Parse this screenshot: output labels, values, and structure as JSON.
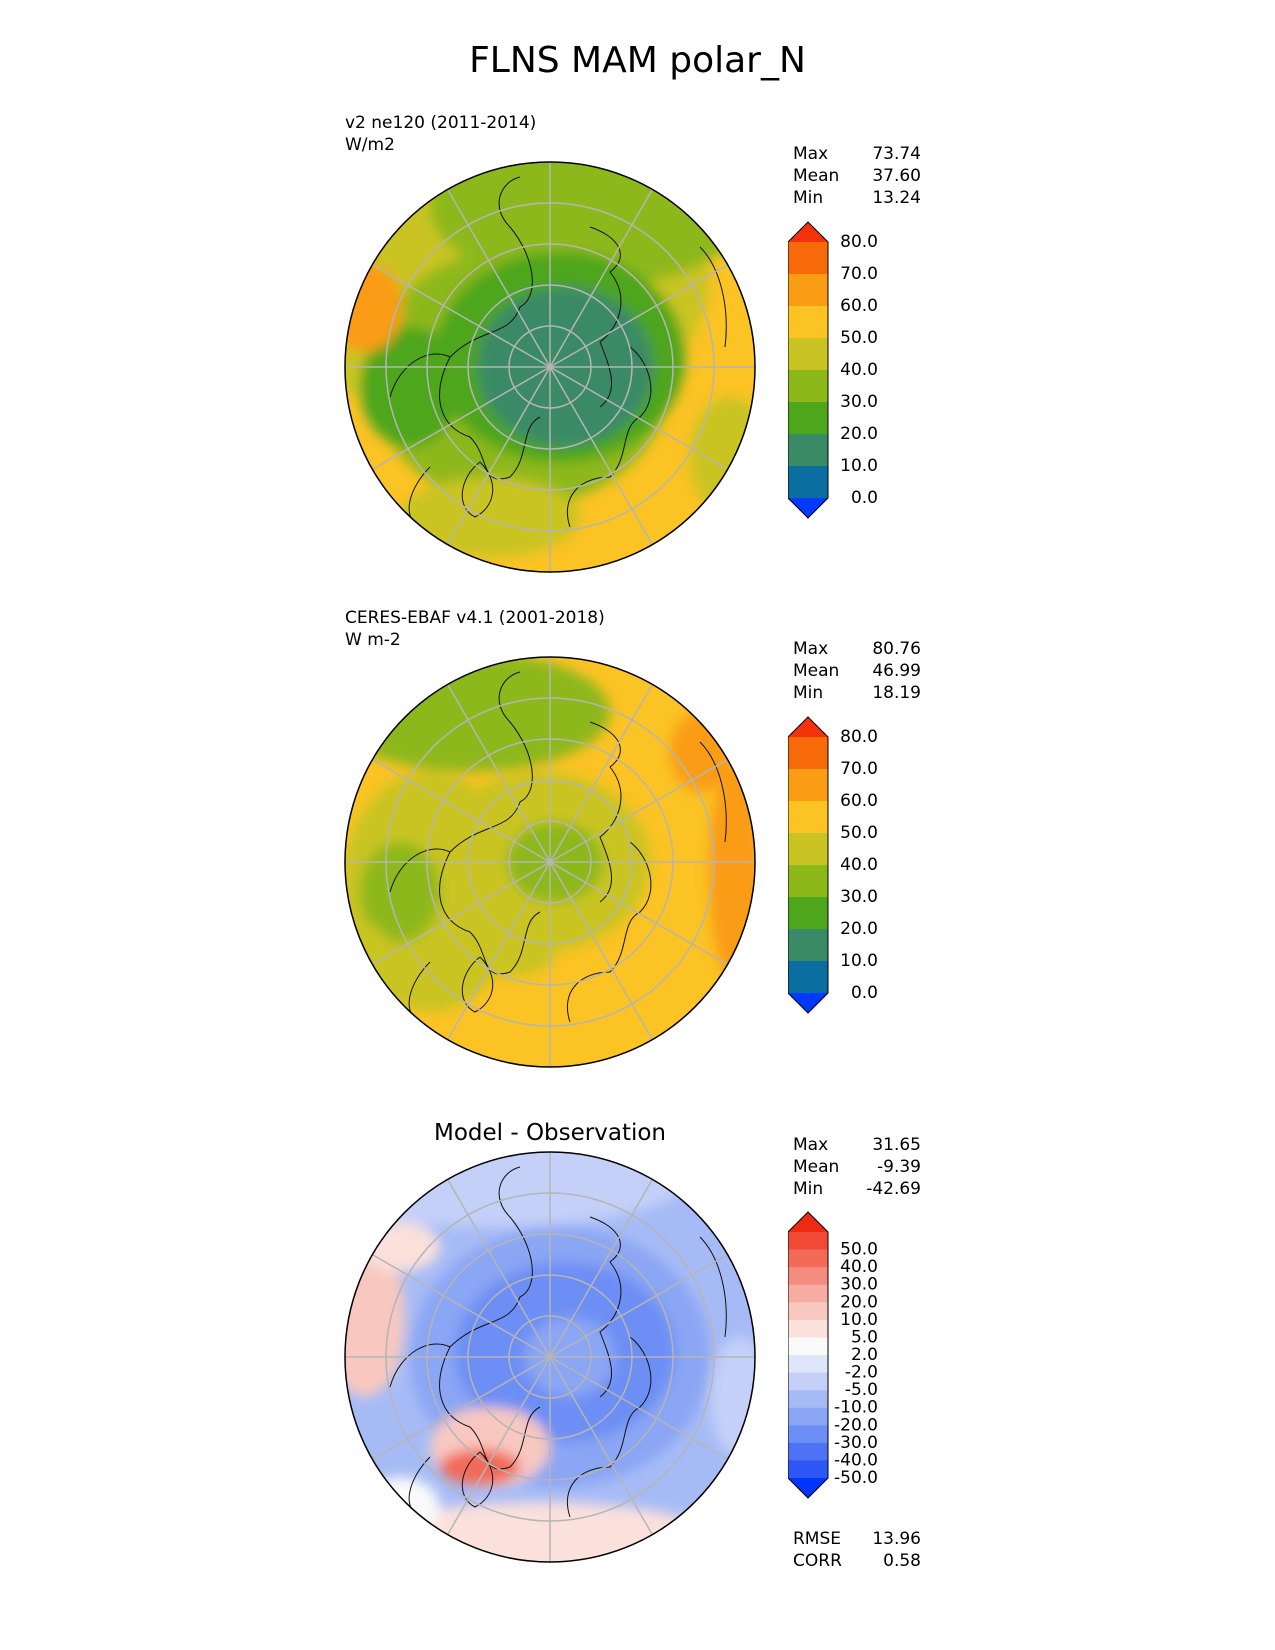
{
  "figure": {
    "title": "FLNS MAM polar_N"
  },
  "panels": [
    {
      "id": "model",
      "label": "v2 ne120 (2011-2014)",
      "units": "W/m2",
      "stats": {
        "max_label": "Max",
        "max": "73.74",
        "mean_label": "Mean",
        "mean": "37.60",
        "min_label": "Min",
        "min": "13.24"
      },
      "colorbar": {
        "ticks": [
          "0.0",
          "10.0",
          "20.0",
          "30.0",
          "40.0",
          "50.0",
          "60.0",
          "70.0",
          "80.0"
        ],
        "colors": [
          "#0039ff",
          "#0a6ea0",
          "#3a8a66",
          "#4ea61a",
          "#8db81a",
          "#c9c424",
          "#fbc324",
          "#fa9c14",
          "#f66a0a",
          "#f4330a"
        ]
      }
    },
    {
      "id": "obs",
      "label": "CERES-EBAF v4.1 (2001-2018)",
      "units": "W m-2",
      "stats": {
        "max_label": "Max",
        "max": "80.76",
        "mean_label": "Mean",
        "mean": "46.99",
        "min_label": "Min",
        "min": "18.19"
      },
      "colorbar": {
        "ticks": [
          "0.0",
          "10.0",
          "20.0",
          "30.0",
          "40.0",
          "50.0",
          "60.0",
          "70.0",
          "80.0"
        ],
        "colors": [
          "#0039ff",
          "#0a6ea0",
          "#3a8a66",
          "#4ea61a",
          "#8db81a",
          "#c9c424",
          "#fbc324",
          "#fa9c14",
          "#f66a0a",
          "#f4330a"
        ]
      }
    },
    {
      "id": "diff",
      "label": "Model - Observation",
      "stats": {
        "max_label": "Max",
        "max": "31.65",
        "mean_label": "Mean",
        "mean": "-9.39",
        "min_label": "Min",
        "min": "-42.69"
      },
      "colorbar": {
        "ticks": [
          "-50.0",
          "-40.0",
          "-30.0",
          "-20.0",
          "-10.0",
          "-5.0",
          "-2.0",
          "2.0",
          "5.0",
          "10.0",
          "20.0",
          "30.0",
          "40.0",
          "50.0"
        ],
        "colors": [
          "#0034ff",
          "#2e57f5",
          "#4d72f4",
          "#6d8ef4",
          "#8ba6f4",
          "#a6bbf6",
          "#c4d0f8",
          "#dfe5fb",
          "#fafafa",
          "#fbe0dc",
          "#f8c8c0",
          "#f6aca0",
          "#f48d7d",
          "#f26a58",
          "#f04a36",
          "#ef2a12"
        ]
      },
      "metrics": {
        "rmse_label": "RMSE",
        "rmse": "13.96",
        "corr_label": "CORR",
        "corr": "0.58"
      }
    }
  ]
}
